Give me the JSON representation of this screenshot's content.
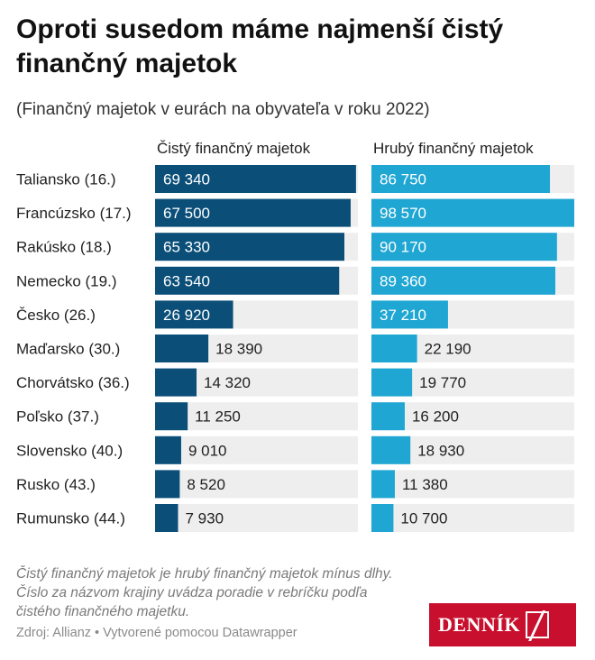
{
  "title": "Oproti susedom máme najmenší čistý finančný majetok",
  "subtitle": "(Finančný majetok v eurách na obyvateľa v roku 2022)",
  "notes": "Čistý finančný majetok je hrubý finančný majetok mínus dlhy. Číslo za názvom krajiny uvádza poradie v rebríčku podľa čistého finančného majetku.",
  "source": "Zdroj: Allianz • Vytvorené pomocou Datawrapper",
  "logo": {
    "text": "DENNÍK"
  },
  "colors": {
    "net": "#0b4f79",
    "gross": "#1fa6d3",
    "track": "#eeeeee"
  },
  "chart_data": {
    "type": "bar",
    "orientation": "horizontal",
    "categories": [
      "Taliansko (16.)",
      "Francúzsko (17.)",
      "Rakúsko (18.)",
      "Nemecko (19.)",
      "Česko (26.)",
      "Maďarsko (30.)",
      "Chorvátsko (36.)",
      "Poľsko (37.)",
      "Slovensko (40.)",
      "Rusko (43.)",
      "Rumunsko (44.)"
    ],
    "series": [
      {
        "name": "Čistý finančný majetok",
        "values": [
          69340,
          67500,
          65330,
          63540,
          26920,
          18390,
          14320,
          11250,
          9010,
          8520,
          7930
        ],
        "labels": [
          "69 340",
          "67 500",
          "65 330",
          "63 540",
          "26 920",
          "18 390",
          "14 320",
          "11 250",
          "9 010",
          "8 520",
          "7 930"
        ]
      },
      {
        "name": "Hrubý finančný majetok",
        "values": [
          86750,
          98570,
          90170,
          89360,
          37210,
          22190,
          19770,
          16200,
          18930,
          11380,
          10700
        ],
        "labels": [
          "86 750",
          "98 570",
          "90 170",
          "89 360",
          "37 210",
          "22 190",
          "19 770",
          "16 200",
          "18 930",
          "11 380",
          "10 700"
        ]
      }
    ],
    "xlim": [
      [
        0,
        70000
      ],
      [
        0,
        98570
      ]
    ]
  }
}
